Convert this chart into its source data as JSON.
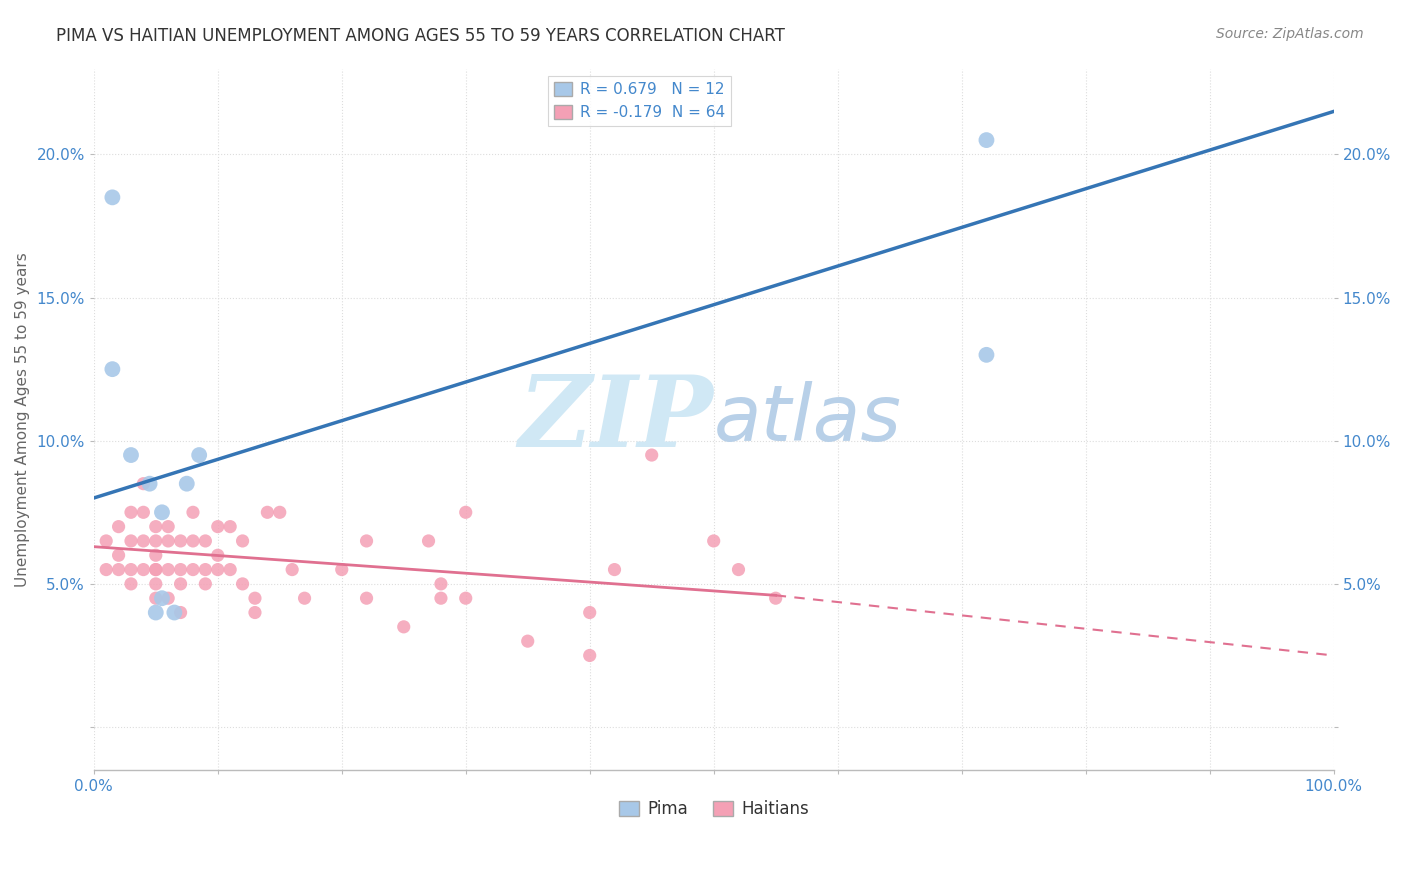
{
  "title": "PIMA VS HAITIAN UNEMPLOYMENT AMONG AGES 55 TO 59 YEARS CORRELATION CHART",
  "source": "Source: ZipAtlas.com",
  "ylabel": "Unemployment Among Ages 55 to 59 years",
  "xlim": [
    0,
    100
  ],
  "ylim": [
    -1.5,
    23
  ],
  "yticks": [
    0,
    5,
    10,
    15,
    20
  ],
  "ytick_labels": [
    "",
    "5.0%",
    "10.0%",
    "15.0%",
    "20.0%"
  ],
  "xticks": [
    0,
    10,
    20,
    30,
    40,
    50,
    60,
    70,
    80,
    90,
    100
  ],
  "xtick_labels": [
    "0.0%",
    "",
    "",
    "",
    "",
    "",
    "",
    "",
    "",
    "",
    "100.0%"
  ],
  "pima_R": 0.679,
  "pima_N": 12,
  "haitian_R": -0.179,
  "haitian_N": 64,
  "pima_color": "#a8c8e8",
  "pima_line_color": "#3575b5",
  "haitian_color": "#f4a0b5",
  "haitian_line_color": "#e07090",
  "watermark_zip": "ZIP",
  "watermark_atlas": "atlas",
  "watermark_color_zip": "#d0e8f5",
  "watermark_color_atlas": "#b8d0e8",
  "pima_x": [
    1.5,
    1.5,
    3.0,
    4.5,
    5.5,
    5.5,
    6.5,
    7.5,
    8.5,
    72,
    72,
    5.0
  ],
  "pima_y": [
    18.5,
    12.5,
    9.5,
    8.5,
    7.5,
    4.5,
    4.0,
    8.5,
    9.5,
    20.5,
    13.0,
    4.0
  ],
  "haitian_x": [
    1,
    1,
    2,
    2,
    2,
    3,
    3,
    3,
    3,
    4,
    4,
    4,
    4,
    5,
    5,
    5,
    5,
    5,
    5,
    5,
    6,
    6,
    6,
    6,
    7,
    7,
    7,
    7,
    8,
    8,
    8,
    9,
    9,
    9,
    10,
    10,
    10,
    11,
    11,
    12,
    12,
    13,
    13,
    14,
    15,
    16,
    17,
    20,
    22,
    22,
    25,
    27,
    28,
    28,
    30,
    30,
    35,
    40,
    42,
    45,
    50,
    52,
    55,
    40
  ],
  "haitian_y": [
    6.5,
    5.5,
    7.0,
    6.0,
    5.5,
    7.5,
    6.5,
    5.5,
    5.0,
    8.5,
    7.5,
    6.5,
    5.5,
    7.0,
    6.5,
    6.0,
    5.5,
    5.5,
    5.0,
    4.5,
    7.0,
    6.5,
    5.5,
    4.5,
    6.5,
    5.5,
    5.0,
    4.0,
    7.5,
    6.5,
    5.5,
    6.5,
    5.5,
    5.0,
    7.0,
    6.0,
    5.5,
    7.0,
    5.5,
    6.5,
    5.0,
    4.5,
    4.0,
    7.5,
    7.5,
    5.5,
    4.5,
    5.5,
    4.5,
    6.5,
    3.5,
    6.5,
    5.0,
    4.5,
    4.5,
    7.5,
    3.0,
    2.5,
    5.5,
    9.5,
    6.5,
    5.5,
    4.5,
    4.0
  ],
  "pima_line_x0": 0,
  "pima_line_y0": 8.0,
  "pima_line_x1": 100,
  "pima_line_y1": 21.5,
  "haitian_line_x0": 0,
  "haitian_line_y0": 6.3,
  "haitian_line_x1_solid": 55,
  "haitian_line_y1_solid": 4.6,
  "haitian_line_x1_dash": 100,
  "haitian_line_y1_dash": 2.5,
  "bg_color": "#ffffff",
  "grid_color": "#dddddd",
  "tick_color": "#4488cc",
  "spine_color": "#bbbbbb"
}
